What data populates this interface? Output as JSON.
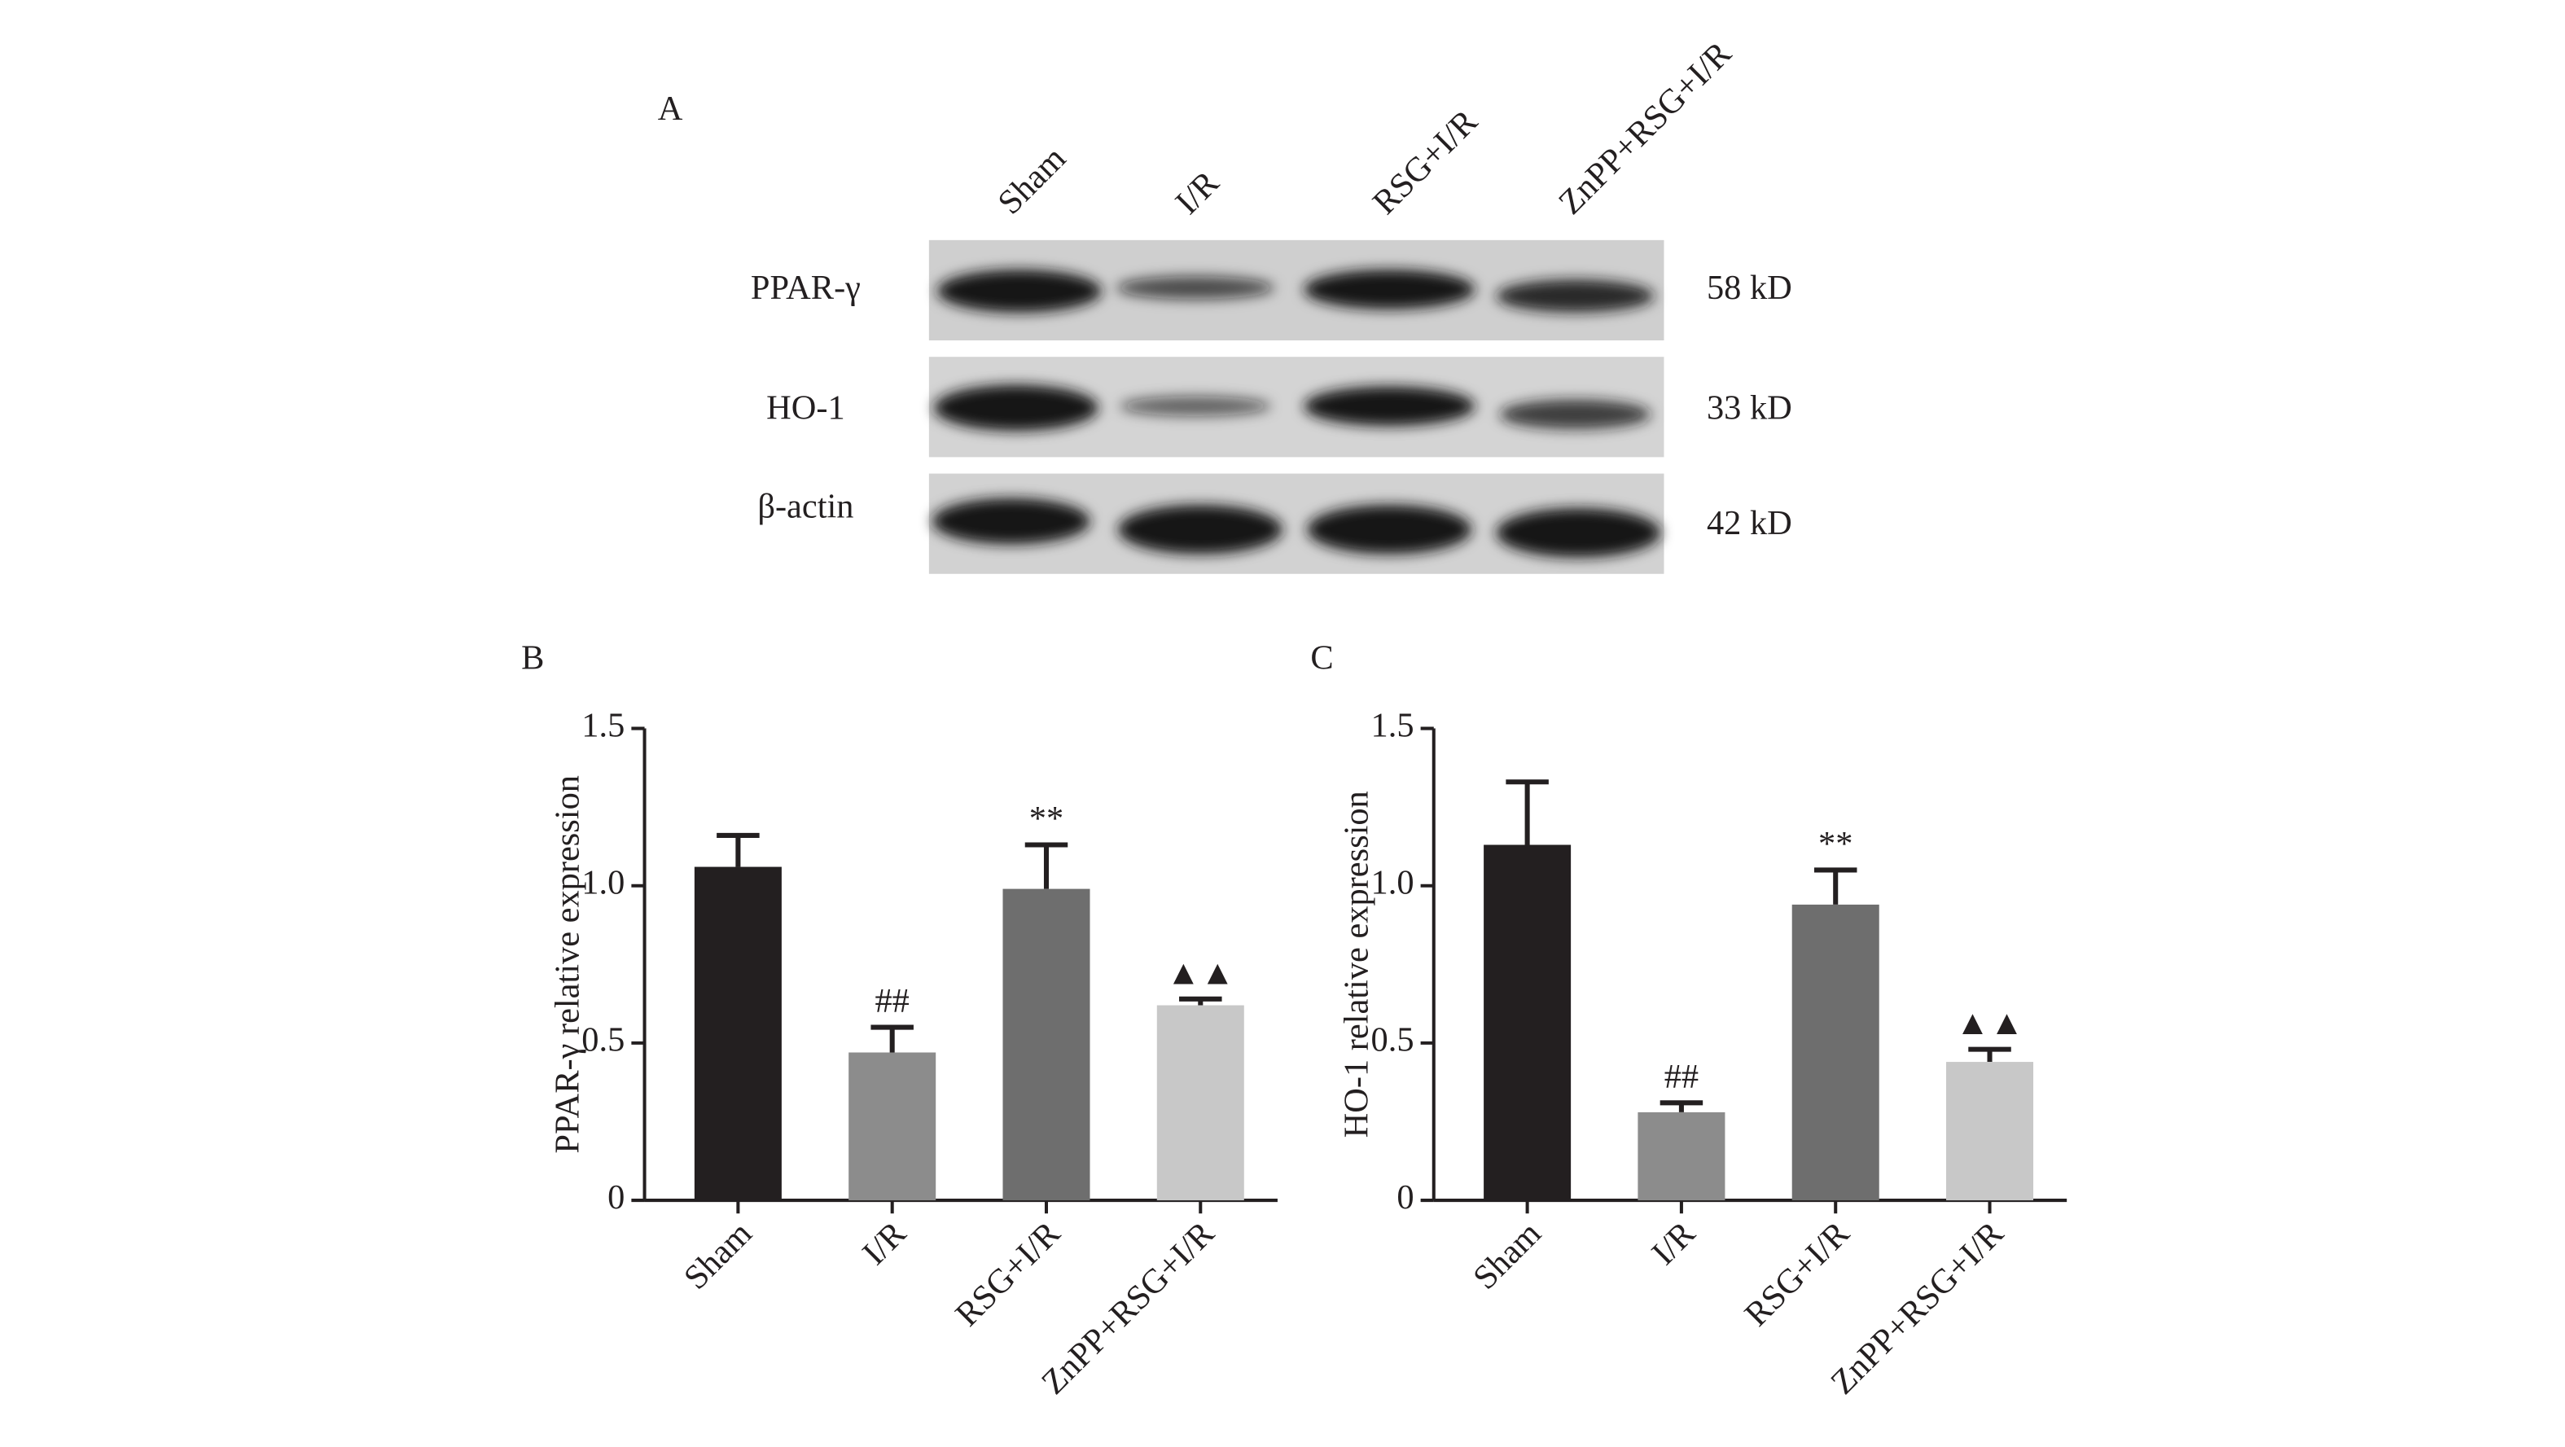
{
  "blot": {
    "panel_label": "A",
    "lanes": [
      "Sham",
      "I/R",
      "RSG+I/R",
      "ZnPP+RSG+I/R"
    ],
    "proteins": [
      {
        "name": "PPAR-γ",
        "size": "58 kD"
      },
      {
        "name": "HO-1",
        "size": "33 kD"
      },
      {
        "name": "β-actin",
        "size": "42 kD"
      }
    ]
  },
  "chart_data": [
    {
      "type": "bar",
      "panel_label": "B",
      "y_label": "PPAR-γ relative expression",
      "categories": [
        "Sham",
        "I/R",
        "RSG+I/R",
        "ZnPP+RSG+I/R"
      ],
      "values": [
        1.06,
        0.47,
        0.99,
        0.62
      ],
      "errors": [
        0.1,
        0.08,
        0.14,
        0.02
      ],
      "annotations": [
        null,
        "##",
        "**",
        "▲▲"
      ],
      "colors": [
        "#231f20",
        "#8c8c8c",
        "#6e6e6e",
        "#c8c8c8"
      ],
      "ylim": [
        0,
        1.5
      ],
      "yticks": [
        0,
        0.5,
        {
          "value": 1.0,
          "label": "1.0"
        },
        {
          "value": 1.5,
          "label": "1.5"
        }
      ]
    },
    {
      "type": "bar",
      "panel_label": "C",
      "y_label": "HO-1 relative expression",
      "categories": [
        "Sham",
        "I/R",
        "RSG+I/R",
        "ZnPP+RSG+I/R"
      ],
      "values": [
        1.13,
        0.28,
        0.94,
        0.44
      ],
      "errors": [
        0.2,
        0.03,
        0.11,
        0.04
      ],
      "annotations": [
        null,
        "##",
        "**",
        "▲▲"
      ],
      "colors": [
        "#231f20",
        "#8c8c8c",
        "#6e6e6e",
        "#c8c8c8"
      ],
      "ylim": [
        0,
        1.5
      ],
      "yticks": [
        0,
        0.5,
        {
          "value": 1.0,
          "label": "1.0"
        },
        {
          "value": 1.5,
          "label": "1.5"
        }
      ]
    }
  ]
}
